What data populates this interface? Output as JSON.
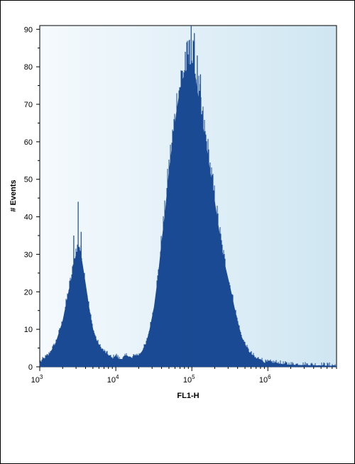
{
  "chart_data": {
    "type": "area",
    "title": "",
    "xlabel": "FL1-H",
    "ylabel": "# Events",
    "x_scale": "log",
    "xlim": [
      1000,
      8000000
    ],
    "ylim": [
      0,
      91
    ],
    "grid": false,
    "legend": "none",
    "colors": {
      "fill": "#1a4a93",
      "plot_bg_left": "#f5fafd",
      "plot_bg_right": "#cfe6f2"
    },
    "x_ticks": [
      {
        "value": 1000,
        "base": "10",
        "exp": "3"
      },
      {
        "value": 10000,
        "base": "10",
        "exp": "4"
      },
      {
        "value": 100000,
        "base": "10",
        "exp": "5"
      },
      {
        "value": 1000000,
        "base": "10",
        "exp": "6"
      }
    ],
    "y_ticks": [
      "0",
      "10",
      "20",
      "30",
      "40",
      "50",
      "60",
      "70",
      "80",
      "90"
    ],
    "series": [
      {
        "x": [
          1000,
          1300,
          1600,
          2000,
          2400,
          2700,
          3000,
          3300,
          3600,
          4000,
          4500,
          5000,
          5600,
          6300,
          7000,
          8000,
          9000,
          10000,
          11000,
          12500,
          14000,
          16000,
          18000,
          20000,
          22000,
          25000,
          28000,
          32000,
          36000,
          40000,
          45000,
          50000,
          56000,
          63000,
          70000,
          80000,
          90000,
          100000,
          112000,
          125000,
          140000,
          160000,
          180000,
          200000,
          225000,
          250000,
          280000,
          320000,
          360000,
          400000,
          450000,
          500000,
          560000,
          630000,
          700000,
          800000,
          900000,
          1000000,
          1250000,
          1600000,
          2000000,
          3000000,
          5000000,
          8000000
        ],
        "y": [
          1,
          3,
          6,
          12,
          20,
          25,
          30,
          32,
          28,
          22,
          15,
          10,
          7,
          5,
          4,
          3,
          2,
          3,
          2,
          2,
          3,
          2,
          3,
          3,
          4,
          6,
          10,
          16,
          24,
          33,
          42,
          52,
          60,
          68,
          74,
          78,
          80,
          81,
          77,
          70,
          64,
          57,
          50,
          44,
          37,
          31,
          26,
          21,
          16,
          12,
          8,
          6,
          4,
          3,
          2,
          2,
          1,
          1,
          1,
          0.6,
          0.5,
          0.4,
          0.3,
          0.2
        ],
        "spikes": [
          {
            "x": 2800,
            "y": 35
          },
          {
            "x": 3200,
            "y": 44
          },
          {
            "x": 3500,
            "y": 36
          },
          {
            "x": 82000,
            "y": 84
          },
          {
            "x": 92000,
            "y": 87
          },
          {
            "x": 98000,
            "y": 91
          },
          {
            "x": 108000,
            "y": 89
          },
          {
            "x": 118000,
            "y": 83
          },
          {
            "x": 130000,
            "y": 78
          }
        ]
      }
    ]
  }
}
